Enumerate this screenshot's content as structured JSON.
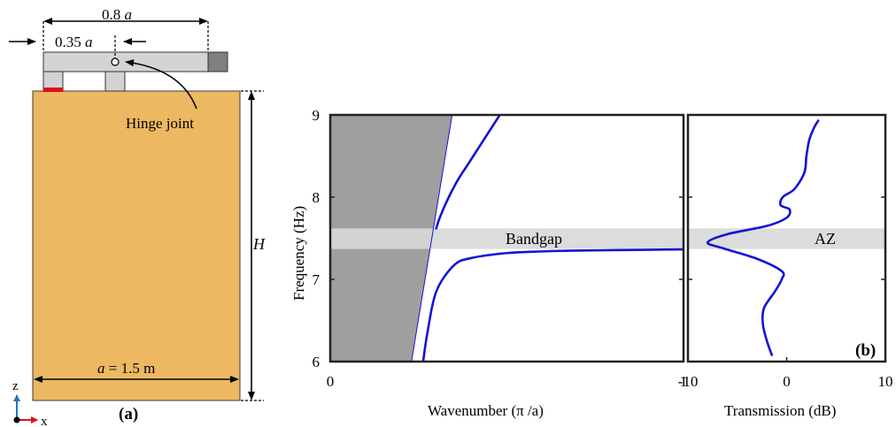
{
  "panel_a": {
    "label": "(a)",
    "dim_top": "0.8",
    "dim_top_var": "a",
    "dim_sub": "0.35",
    "dim_sub_var": "a",
    "hinge_label": "Hinge joint",
    "height_label": "H",
    "width_var": "a",
    "width_rest": " = 1.5 m",
    "axis_z": "z",
    "axis_x": "x",
    "colors": {
      "block": "#ecb862",
      "beam": "#d3d3d3",
      "beam_end": "#7f7f7f",
      "red_pad": "#e0101a",
      "axis_z": "#1f77c8",
      "axis_x": "#e0101a"
    }
  },
  "panel_b": {
    "label": "(b)",
    "chart_data": [
      {
        "type": "line",
        "title": "",
        "xlabel": "Wavenumber (π /a)",
        "ylabel": "Frequency (Hz)",
        "xlim": [
          0,
          1
        ],
        "ylim": [
          6,
          9
        ],
        "x_ticks": [
          "0",
          "1"
        ],
        "y_ticks": [
          "6",
          "7",
          "8",
          "9"
        ],
        "shaded_region": {
          "label": "",
          "polygon": [
            [
              0,
              6
            ],
            [
              0.23,
              6
            ],
            [
              0.345,
              9
            ],
            [
              0,
              9
            ]
          ],
          "color": "#9f9f9f"
        },
        "band": {
          "label": "Bandgap",
          "ymin": 7.37,
          "ymax": 7.62,
          "color": "#d8d8d8"
        },
        "series": [
          {
            "x": [
              0.263,
              0.275,
              0.3,
              0.35,
              0.4,
              0.5,
              0.6,
              0.7,
              0.8,
              0.9,
              1.0
            ],
            "y": [
              6.0,
              6.35,
              6.85,
              7.17,
              7.26,
              7.32,
              7.34,
              7.35,
              7.355,
              7.36,
              7.365
            ]
          },
          {
            "x": [
              0.3,
              0.31,
              0.33,
              0.36,
              0.39,
              0.42,
              0.45,
              0.48
            ],
            "y": [
              7.62,
              7.75,
              7.95,
              8.2,
              8.4,
              8.6,
              8.8,
              9.0
            ]
          }
        ],
        "color": "#1414d2"
      },
      {
        "type": "line",
        "title": "",
        "xlabel": "Transmission (dB)",
        "ylabel": "",
        "xlim": [
          -10,
          10
        ],
        "ylim": [
          6,
          9
        ],
        "x_ticks": [
          "-10",
          "0",
          "10"
        ],
        "band": {
          "label": "AZ",
          "ymin": 7.37,
          "ymax": 7.62,
          "color": "#d8d8d8"
        },
        "series": [
          {
            "x": [
              -1.5,
              -2.0,
              -2.4,
              -2.3,
              -1.2,
              -0.5,
              -0.5,
              -3.0,
              -6.5,
              -8.0,
              -6.0,
              -2.0,
              0.0,
              0.3,
              -0.6,
              -0.4,
              0.8,
              1.8,
              2.0,
              2.3,
              2.8,
              3.2
            ],
            "y": [
              6.08,
              6.25,
              6.45,
              6.65,
              6.85,
              7.0,
              7.1,
              7.25,
              7.38,
              7.45,
              7.55,
              7.65,
              7.75,
              7.85,
              7.9,
              8.0,
              8.1,
              8.3,
              8.5,
              8.7,
              8.85,
              8.93
            ]
          }
        ],
        "color": "#1414d2"
      }
    ]
  }
}
